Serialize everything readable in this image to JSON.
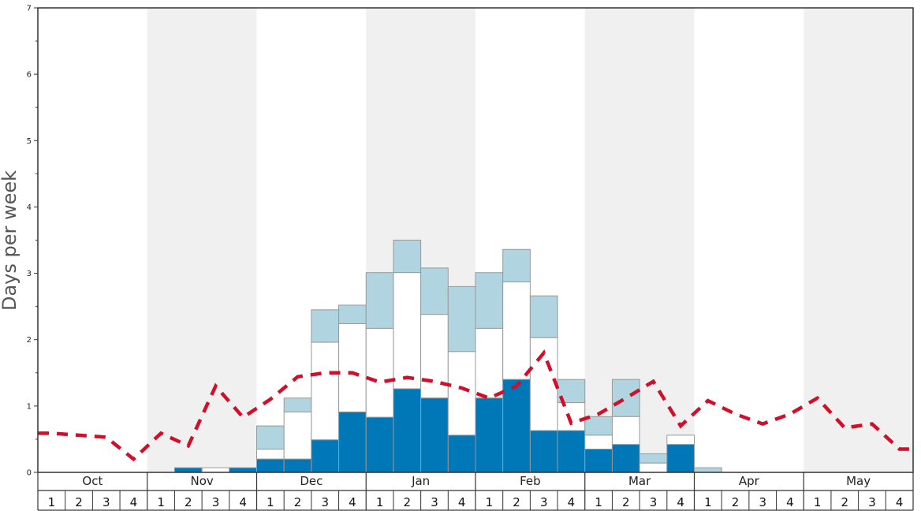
{
  "chart_data": {
    "type": "bar",
    "ylabel": "Days per week",
    "ylim": [
      0,
      7
    ],
    "yticks": [
      "0",
      "1",
      "2",
      "3",
      "4",
      "5",
      "6",
      "7"
    ],
    "months": [
      "Oct",
      "Nov",
      "Dec",
      "Jan",
      "Feb",
      "Mar",
      "Apr",
      "May"
    ],
    "week_labels": [
      "1",
      "2",
      "3",
      "4"
    ],
    "colors": {
      "dark": "#0077b6",
      "white": "#ffffff",
      "light": "#b0d4e0",
      "line": "#d0102a",
      "shade": "#f0f0f0",
      "grid": "#333333"
    },
    "series": [
      {
        "name": "dark",
        "values": [
          0,
          0,
          0,
          0,
          0,
          0.07,
          0,
          0.07,
          0.2,
          0.2,
          0.49,
          0.91,
          0.83,
          1.26,
          1.12,
          0.56,
          1.12,
          1.4,
          0.63,
          0.63,
          0.35,
          0.42,
          0,
          0.42,
          0,
          0,
          0,
          0,
          0,
          0,
          0,
          0
        ]
      },
      {
        "name": "white_top",
        "values": [
          0,
          0,
          0,
          0,
          0,
          0.07,
          0.07,
          0.07,
          0.35,
          0.91,
          1.96,
          2.24,
          2.17,
          3.01,
          2.38,
          1.82,
          2.17,
          2.87,
          2.03,
          1.05,
          0.56,
          0.84,
          0.14,
          0.56,
          0,
          0,
          0,
          0,
          0,
          0,
          0,
          0
        ]
      },
      {
        "name": "light_top",
        "values": [
          0,
          0,
          0,
          0,
          0,
          0.07,
          0.07,
          0.07,
          0.7,
          1.12,
          2.45,
          2.52,
          3.01,
          3.5,
          3.08,
          2.8,
          3.01,
          3.36,
          2.66,
          1.4,
          0.84,
          1.4,
          0.28,
          0.56,
          0.07,
          0,
          0,
          0,
          0,
          0,
          0,
          0
        ]
      },
      {
        "name": "line",
        "values": [
          0.59,
          0.56,
          0.53,
          0.2,
          0.59,
          0.4,
          1.3,
          0.83,
          1.1,
          1.44,
          1.5,
          1.5,
          1.36,
          1.43,
          1.37,
          1.27,
          1.12,
          1.3,
          1.8,
          0.74,
          0.88,
          1.12,
          1.37,
          0.7,
          1.08,
          0.88,
          0.73,
          0.88,
          1.12,
          0.67,
          0.73,
          0.35
        ]
      }
    ]
  }
}
